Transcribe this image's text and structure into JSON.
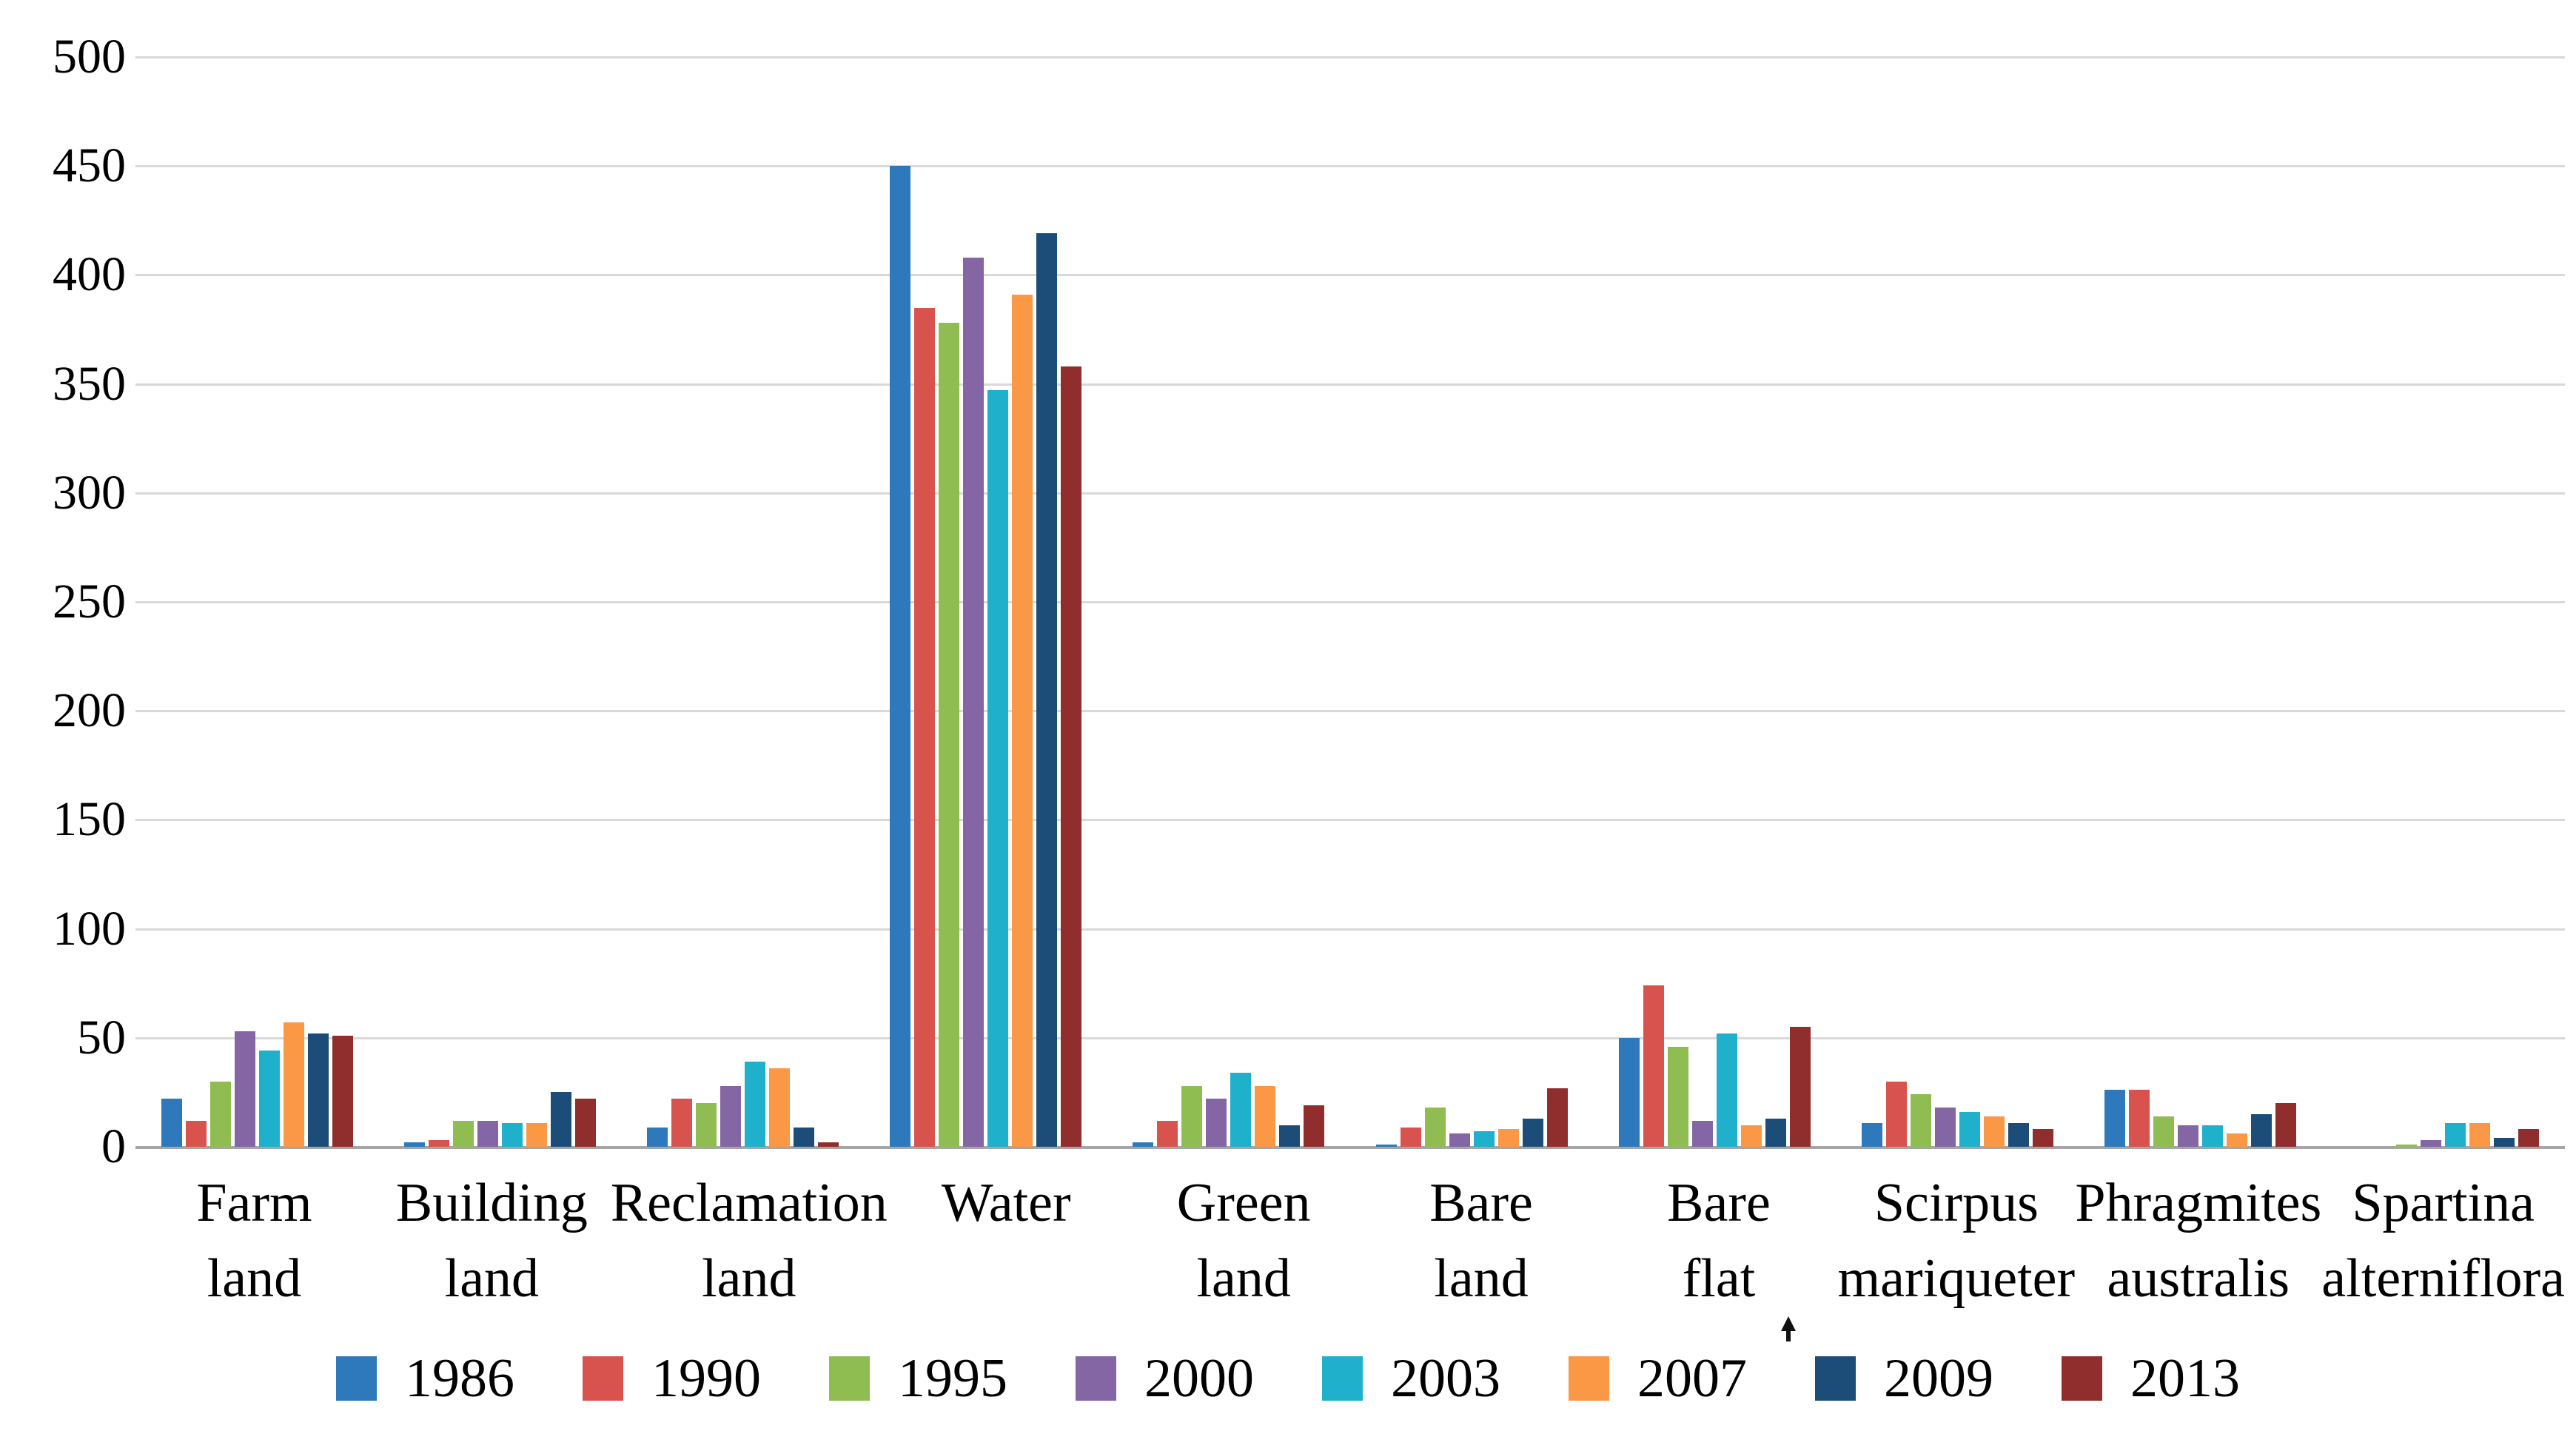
{
  "chart_data": {
    "type": "bar",
    "title": "",
    "xlabel": "",
    "ylabel": "",
    "categories": [
      "Farm land",
      "Building land",
      "Reclamation land",
      "Water",
      "Green land",
      "Bare land",
      "Bare flat",
      "Scirpus mariqueter",
      "Phragmites australis",
      "Spartina alterniflora"
    ],
    "category_label_lines": [
      "Farm\nland",
      "Building\nland",
      "Reclamation\nland",
      "Water",
      "Green\nland",
      "Bare\nland",
      "Bare\nflat",
      "Scirpus\nmariqueter",
      "Phragmites\naustralis",
      "Spartina\nalterniflora"
    ],
    "series": [
      {
        "name": "1986",
        "color": "#2E79BB",
        "values": [
          22,
          2,
          9,
          450,
          2,
          1,
          50,
          11,
          26,
          0
        ]
      },
      {
        "name": "1990",
        "color": "#D9534E",
        "values": [
          12,
          3,
          22,
          385,
          12,
          9,
          74,
          30,
          26,
          0
        ]
      },
      {
        "name": "1995",
        "color": "#8FBD52",
        "values": [
          30,
          12,
          20,
          378,
          28,
          18,
          46,
          24,
          14,
          1
        ]
      },
      {
        "name": "2000",
        "color": "#8466A5",
        "values": [
          53,
          12,
          28,
          408,
          22,
          6,
          12,
          18,
          10,
          3
        ]
      },
      {
        "name": "2003",
        "color": "#1FB0CC",
        "values": [
          44,
          11,
          39,
          347,
          34,
          7,
          52,
          16,
          10,
          11
        ]
      },
      {
        "name": "2007",
        "color": "#FA9846",
        "values": [
          57,
          11,
          36,
          391,
          28,
          8,
          10,
          14,
          6,
          11
        ]
      },
      {
        "name": "2009",
        "color": "#1C4D78",
        "values": [
          52,
          25,
          9,
          419,
          10,
          13,
          13,
          11,
          15,
          4
        ]
      },
      {
        "name": "2013",
        "color": "#8F2E2D",
        "values": [
          51,
          22,
          2,
          358,
          19,
          27,
          55,
          8,
          20,
          8
        ]
      }
    ],
    "ylim": [
      0,
      500
    ],
    "ytick_step": 50,
    "ytick_labels": [
      "500",
      "450",
      "400",
      "350",
      "300",
      "250",
      "200",
      "150",
      "100",
      "50",
      "0"
    ],
    "grid": true,
    "gridline_color": "#D9D9D9",
    "zeroline_color": "#A6A6A6",
    "background": "#FFFFFF",
    "legend_position": "bottom",
    "legend_labels": [
      "1986",
      "1990",
      "1995",
      "2000",
      "2003",
      "2007",
      "2009",
      "2013"
    ]
  }
}
